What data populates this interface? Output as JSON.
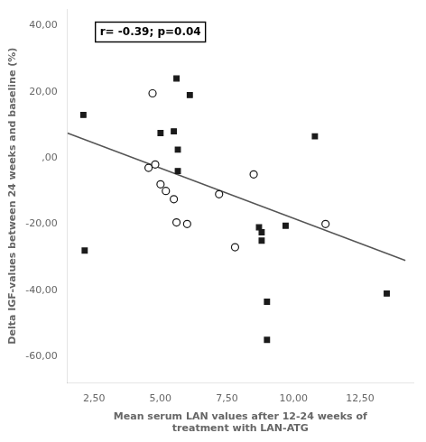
{
  "chart_data": {
    "type": "scatter",
    "xlabel": "Mean serum LAN values after 12-24 weeks of\ntreatment with LAN-ATG",
    "ylabel": "Delta IGF-values between 24 weeks and baseline (%)",
    "annotation": "r= -0.39; p=0.04",
    "series": [
      {
        "type": "scatter",
        "marker": "open circle",
        "color": "#1a1a1a",
        "x": [
          4.7,
          4.8,
          4.55,
          5.0,
          5.2,
          5.5,
          5.6,
          6.0,
          7.2,
          7.8,
          8.5,
          11.2
        ],
        "values": [
          19.5,
          -2.0,
          -3.0,
          -8.0,
          -10.0,
          -12.5,
          -19.5,
          -20.0,
          -11.0,
          -27.0,
          -5.0,
          -20.0
        ]
      },
      {
        "type": "scatter",
        "marker": "square",
        "color": "#1a1a1a",
        "x": [
          2.1,
          2.15,
          5.0,
          5.5,
          5.6,
          5.65,
          5.65,
          6.1,
          8.7,
          8.8,
          8.8,
          9.0,
          9.7,
          10.8,
          13.5,
          9.0
        ],
        "values": [
          13.0,
          -28.0,
          7.5,
          8.0,
          24.0,
          2.5,
          -4.0,
          19.0,
          -21.0,
          -22.5,
          -25.0,
          -43.5,
          -20.5,
          6.5,
          -41.0,
          -55.0
        ]
      },
      {
        "type": "line",
        "line_style": "solid",
        "color": "#555555",
        "x": [
          1.5,
          14.2
        ],
        "values": [
          7.5,
          -31.0
        ]
      }
    ],
    "xlim": [
      1.5,
      14.5
    ],
    "ylim": [
      -68,
      45
    ],
    "xticks": [
      {
        "value": 2.5,
        "label": "2,50"
      },
      {
        "value": 5.0,
        "label": "5,00"
      },
      {
        "value": 7.5,
        "label": "7,50"
      },
      {
        "value": 10.0,
        "label": "10,00"
      },
      {
        "value": 12.5,
        "label": "12,50"
      }
    ],
    "yticks": [
      {
        "value": -60,
        "label": "-60,00"
      },
      {
        "value": -40,
        "label": "-40,00"
      },
      {
        "value": -20,
        "label": "-20,00"
      },
      {
        "value": 0,
        "label": ",00"
      },
      {
        "value": 20,
        "label": "20,00"
      },
      {
        "value": 40,
        "label": "40,00"
      }
    ],
    "grid": false,
    "legend": false
  }
}
